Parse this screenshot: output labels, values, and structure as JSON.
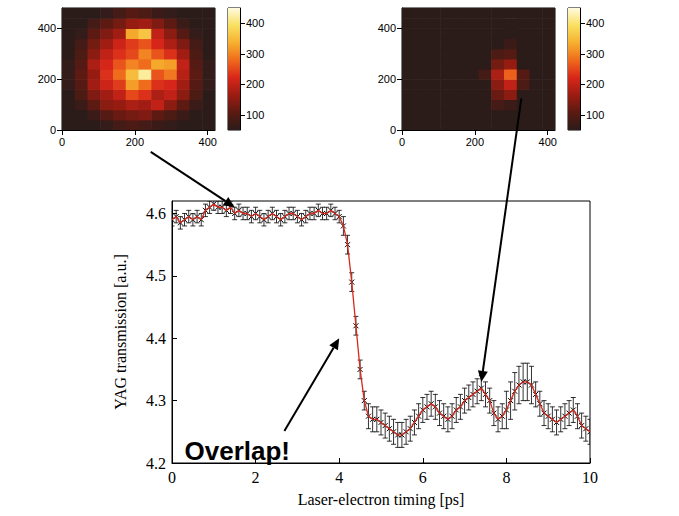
{
  "chart_data": [
    {
      "type": "heatmap",
      "xlim": [
        0,
        420
      ],
      "ylim": [
        0,
        480
      ],
      "xticks": [
        0,
        200,
        400
      ],
      "yticks": [
        0,
        200,
        400
      ],
      "x": [
        17.5,
        52.5,
        87.5,
        122.5,
        157.5,
        192.5,
        227.5,
        262.5,
        297.5,
        332.5,
        367.5,
        402.5
      ],
      "y": [
        20,
        60,
        100,
        140,
        180,
        220,
        260,
        300,
        340,
        380,
        420,
        460
      ],
      "cells": [
        [
          50,
          50,
          50,
          60,
          80,
          90,
          80,
          70,
          60,
          50,
          50,
          50
        ],
        [
          50,
          50,
          70,
          100,
          120,
          130,
          140,
          110,
          90,
          70,
          50,
          50
        ],
        [
          50,
          70,
          110,
          150,
          160,
          180,
          170,
          200,
          150,
          110,
          70,
          50
        ],
        [
          50,
          90,
          140,
          170,
          200,
          250,
          230,
          180,
          200,
          150,
          90,
          50
        ],
        [
          60,
          100,
          170,
          210,
          240,
          320,
          280,
          230,
          220,
          170,
          100,
          60
        ],
        [
          60,
          110,
          160,
          230,
          280,
          350,
          420,
          260,
          290,
          190,
          110,
          60
        ],
        [
          60,
          100,
          180,
          220,
          260,
          300,
          280,
          330,
          320,
          200,
          100,
          60
        ],
        [
          50,
          90,
          150,
          200,
          230,
          250,
          300,
          260,
          230,
          170,
          90,
          50
        ],
        [
          50,
          80,
          130,
          170,
          210,
          240,
          260,
          220,
          180,
          140,
          80,
          50
        ],
        [
          50,
          60,
          110,
          140,
          170,
          330,
          360,
          200,
          150,
          100,
          60,
          50
        ],
        [
          50,
          50,
          80,
          110,
          130,
          160,
          170,
          140,
          110,
          70,
          50,
          50
        ],
        [
          50,
          50,
          50,
          60,
          80,
          100,
          90,
          70,
          60,
          50,
          50,
          50
        ]
      ],
      "colorbar_range": [
        50,
        450
      ],
      "colorbar_ticks": [
        100,
        200,
        300,
        400
      ]
    },
    {
      "type": "heatmap",
      "xlim": [
        0,
        420
      ],
      "ylim": [
        0,
        480
      ],
      "xticks": [
        0,
        200,
        400
      ],
      "yticks": [
        0,
        200,
        400
      ],
      "x": [
        17.5,
        52.5,
        87.5,
        122.5,
        157.5,
        192.5,
        227.5,
        262.5,
        297.5,
        332.5,
        367.5,
        402.5
      ],
      "y": [
        20,
        60,
        100,
        140,
        180,
        220,
        260,
        300,
        340,
        380,
        420,
        460
      ],
      "cells": [
        [
          50,
          50,
          50,
          50,
          50,
          50,
          50,
          50,
          50,
          50,
          50,
          50
        ],
        [
          50,
          50,
          50,
          50,
          50,
          50,
          50,
          50,
          50,
          50,
          50,
          50
        ],
        [
          50,
          50,
          50,
          50,
          50,
          50,
          50,
          80,
          70,
          50,
          50,
          50
        ],
        [
          50,
          50,
          50,
          50,
          50,
          50,
          50,
          120,
          150,
          50,
          50,
          50
        ],
        [
          50,
          50,
          50,
          50,
          50,
          50,
          50,
          150,
          200,
          90,
          50,
          50
        ],
        [
          50,
          50,
          50,
          50,
          50,
          50,
          80,
          180,
          270,
          100,
          50,
          50
        ],
        [
          50,
          50,
          50,
          50,
          50,
          50,
          50,
          130,
          160,
          50,
          50,
          50
        ],
        [
          50,
          50,
          50,
          50,
          50,
          50,
          50,
          90,
          100,
          50,
          50,
          50
        ],
        [
          50,
          50,
          50,
          50,
          50,
          50,
          50,
          50,
          70,
          50,
          50,
          50
        ],
        [
          50,
          50,
          50,
          50,
          50,
          50,
          50,
          50,
          50,
          50,
          50,
          50
        ],
        [
          50,
          50,
          50,
          50,
          50,
          50,
          50,
          50,
          50,
          50,
          50,
          50
        ],
        [
          50,
          50,
          50,
          50,
          50,
          50,
          50,
          50,
          50,
          50,
          50,
          50
        ]
      ],
      "colorbar_range": [
        50,
        450
      ],
      "colorbar_ticks": [
        100,
        200,
        300,
        400
      ]
    },
    {
      "type": "line",
      "xlabel": "Laser-electron timing [ps]",
      "ylabel": "YAG transmission [a.u.]",
      "xlim": [
        0,
        10
      ],
      "ylim": [
        4.2,
        4.62
      ],
      "xticks": [
        0,
        2,
        4,
        6,
        8,
        10
      ],
      "yticks": [
        4.2,
        4.3,
        4.4,
        4.5,
        4.6
      ],
      "grid": false,
      "x": [
        0,
        0.1,
        0.2,
        0.3,
        0.4,
        0.5,
        0.6,
        0.7,
        0.8,
        0.9,
        1,
        1.1,
        1.2,
        1.3,
        1.4,
        1.5,
        1.6,
        1.7,
        1.8,
        1.9,
        2,
        2.1,
        2.2,
        2.3,
        2.4,
        2.5,
        2.6,
        2.7,
        2.8,
        2.9,
        3,
        3.1,
        3.2,
        3.3,
        3.4,
        3.5,
        3.6,
        3.7,
        3.8,
        3.9,
        4,
        4.1,
        4.2,
        4.3,
        4.4,
        4.5,
        4.6,
        4.7,
        4.8,
        4.9,
        5,
        5.1,
        5.2,
        5.3,
        5.4,
        5.5,
        5.6,
        5.7,
        5.8,
        5.9,
        6,
        6.1,
        6.2,
        6.3,
        6.4,
        6.5,
        6.6,
        6.7,
        6.8,
        6.9,
        7,
        7.1,
        7.2,
        7.3,
        7.4,
        7.5,
        7.6,
        7.7,
        7.8,
        7.9,
        8,
        8.1,
        8.2,
        8.3,
        8.4,
        8.5,
        8.6,
        8.7,
        8.8,
        8.9,
        9,
        9.1,
        9.2,
        9.3,
        9.4,
        9.5,
        9.6,
        9.7,
        9.8,
        9.9,
        10
      ],
      "series": [
        {
          "type": "line",
          "color": "#d62a1e",
          "marker": "x",
          "values": [
            4.59,
            4.595,
            4.585,
            4.59,
            4.595,
            4.59,
            4.595,
            4.59,
            4.605,
            4.61,
            4.615,
            4.61,
            4.61,
            4.605,
            4.61,
            4.6,
            4.605,
            4.6,
            4.6,
            4.595,
            4.6,
            4.595,
            4.59,
            4.595,
            4.6,
            4.595,
            4.59,
            4.595,
            4.6,
            4.6,
            4.595,
            4.59,
            4.595,
            4.6,
            4.6,
            4.605,
            4.6,
            4.6,
            4.605,
            4.6,
            4.595,
            4.58,
            4.55,
            4.49,
            4.42,
            4.35,
            4.3,
            4.275,
            4.27,
            4.27,
            4.265,
            4.26,
            4.255,
            4.25,
            4.245,
            4.245,
            4.25,
            4.255,
            4.265,
            4.275,
            4.285,
            4.29,
            4.295,
            4.29,
            4.28,
            4.275,
            4.27,
            4.275,
            4.285,
            4.29,
            4.3,
            4.305,
            4.31,
            4.315,
            4.32,
            4.31,
            4.3,
            4.28,
            4.27,
            4.275,
            4.285,
            4.3,
            4.315,
            4.325,
            4.33,
            4.33,
            4.325,
            4.31,
            4.295,
            4.28,
            4.275,
            4.27,
            4.265,
            4.27,
            4.275,
            4.28,
            4.285,
            4.275,
            4.26,
            4.255,
            4.25
          ],
          "errors": [
            0.01,
            0.01,
            0.01,
            0.01,
            0.01,
            0.01,
            0.01,
            0.01,
            0.01,
            0.01,
            0.01,
            0.01,
            0.01,
            0.01,
            0.01,
            0.01,
            0.01,
            0.01,
            0.01,
            0.01,
            0.01,
            0.01,
            0.01,
            0.01,
            0.01,
            0.01,
            0.01,
            0.01,
            0.01,
            0.01,
            0.01,
            0.01,
            0.01,
            0.01,
            0.01,
            0.01,
            0.01,
            0.01,
            0.01,
            0.01,
            0.01,
            0.015,
            0.015,
            0.015,
            0.015,
            0.015,
            0.015,
            0.02,
            0.02,
            0.02,
            0.02,
            0.02,
            0.02,
            0.02,
            0.02,
            0.02,
            0.02,
            0.02,
            0.02,
            0.02,
            0.02,
            0.02,
            0.02,
            0.02,
            0.02,
            0.02,
            0.02,
            0.02,
            0.02,
            0.02,
            0.02,
            0.02,
            0.02,
            0.02,
            0.02,
            0.02,
            0.02,
            0.02,
            0.02,
            0.02,
            0.03,
            0.03,
            0.03,
            0.03,
            0.03,
            0.03,
            0.03,
            0.02,
            0.02,
            0.02,
            0.02,
            0.02,
            0.02,
            0.02,
            0.02,
            0.02,
            0.02,
            0.02,
            0.02,
            0.02,
            0.02
          ]
        }
      ],
      "annotations": [
        {
          "text": "Overlap!",
          "x": 0.3,
          "y": 4.22,
          "arrow_to": {
            "x": 4.0,
            "y": 4.4
          }
        }
      ],
      "pointers": [
        {
          "chart": 0,
          "x": 1.5,
          "y": 4.61
        },
        {
          "chart": 1,
          "x": 7.4,
          "y": 4.33
        }
      ]
    }
  ]
}
